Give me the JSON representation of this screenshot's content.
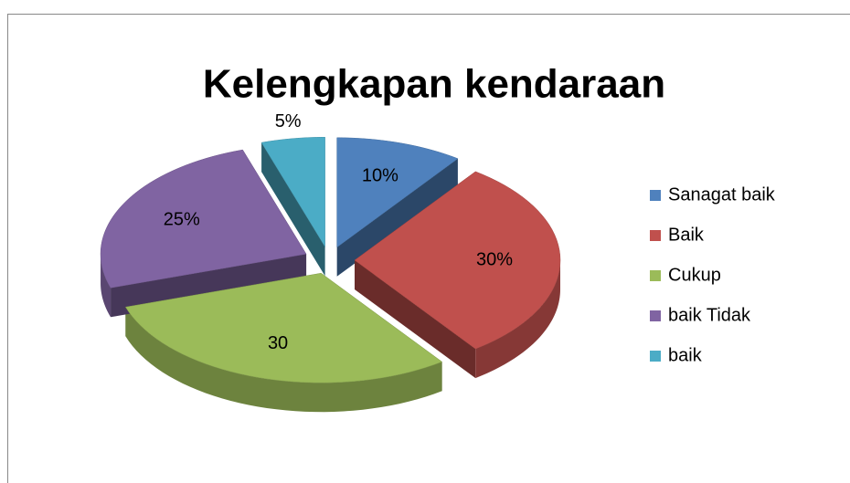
{
  "chart_data": {
    "type": "pie",
    "title": "Kelengkapan kendaraan",
    "categories": [
      "Sanagat baik",
      "Baik",
      "Cukup",
      "baik Tidak",
      "baik"
    ],
    "values": [
      10,
      30,
      30,
      25,
      5
    ],
    "value_labels": [
      "10%",
      "30%",
      "30",
      "25%",
      "5%"
    ],
    "colors": [
      "#4f81bd",
      "#c0504d",
      "#9bbb59",
      "#8064a2",
      "#4bacc6"
    ],
    "legend": "right"
  }
}
